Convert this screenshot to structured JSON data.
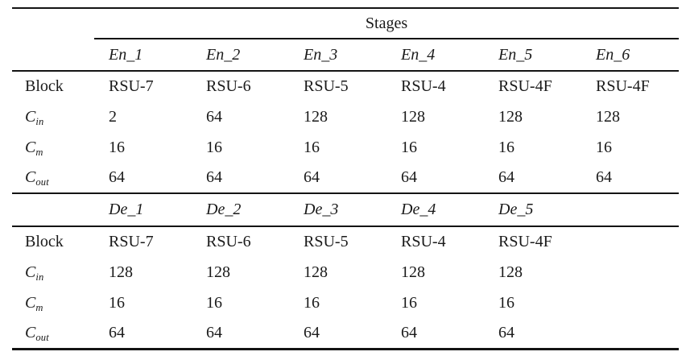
{
  "page": {
    "background": "#ffffff",
    "text_color": "#1a1a1a",
    "rule_color": "#141414"
  },
  "table": {
    "header": "Stages",
    "row_labels": {
      "block": "Block",
      "c_base": "C",
      "sub_in": "in",
      "sub_m": "m",
      "sub_out": "out"
    },
    "encoder": {
      "stages": [
        "En_1",
        "En_2",
        "En_3",
        "En_4",
        "En_5",
        "En_6"
      ],
      "block": [
        "RSU-7",
        "RSU-6",
        "RSU-5",
        "RSU-4",
        "RSU-4F",
        "RSU-4F"
      ],
      "c_in": [
        "2",
        "64",
        "128",
        "128",
        "128",
        "128"
      ],
      "c_m": [
        "16",
        "16",
        "16",
        "16",
        "16",
        "16"
      ],
      "c_out": [
        "64",
        "64",
        "64",
        "64",
        "64",
        "64"
      ]
    },
    "decoder": {
      "stages": [
        "De_1",
        "De_2",
        "De_3",
        "De_4",
        "De_5",
        ""
      ],
      "block": [
        "RSU-7",
        "RSU-6",
        "RSU-5",
        "RSU-4",
        "RSU-4F",
        ""
      ],
      "c_in": [
        "128",
        "128",
        "128",
        "128",
        "128",
        ""
      ],
      "c_m": [
        "16",
        "16",
        "16",
        "16",
        "16",
        ""
      ],
      "c_out": [
        "64",
        "64",
        "64",
        "64",
        "64",
        ""
      ]
    }
  }
}
